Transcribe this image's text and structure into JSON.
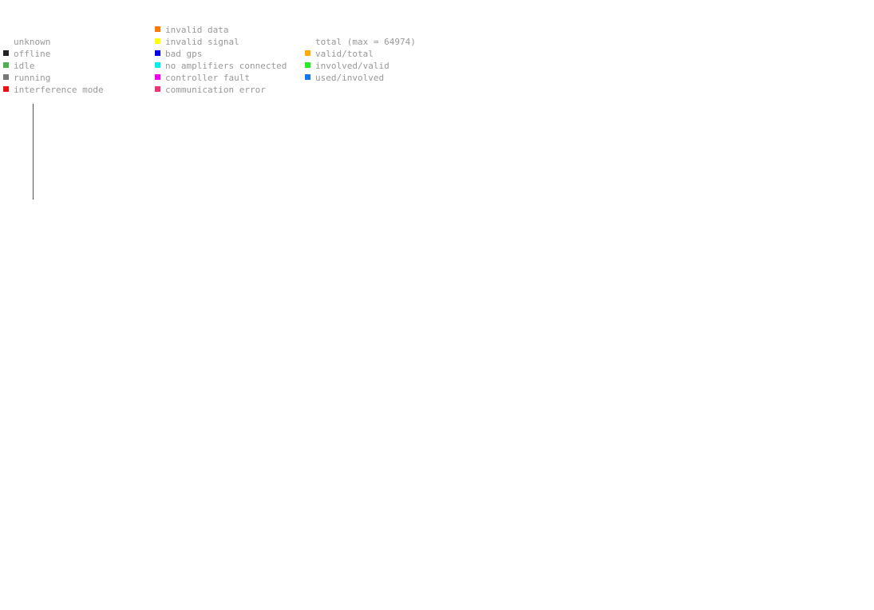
{
  "legend": {
    "status": {
      "items": [
        {
          "label": "unknown",
          "color": ""
        },
        {
          "label": "offline",
          "color": "#222222"
        },
        {
          "label": "idle",
          "color": "#4caf50"
        },
        {
          "label": "running",
          "color": "#777777"
        },
        {
          "label": "interference mode",
          "color": "#ee1111"
        }
      ]
    },
    "faults": {
      "items": [
        {
          "label": "invalid data",
          "color": "#ff7a00"
        },
        {
          "label": "invalid signal",
          "color": "#ffff00"
        },
        {
          "label": "bad gps",
          "color": "#0000ee"
        },
        {
          "label": "no amplifiers connected",
          "color": "#00eeee"
        },
        {
          "label": "controller fault",
          "color": "#ee00ee"
        },
        {
          "label": "communication error",
          "color": "#ee3377"
        }
      ]
    },
    "totals": {
      "items": [
        {
          "label": "total (max = 64974)",
          "color": ""
        },
        {
          "label": "valid/total",
          "color": "#ffaa00"
        },
        {
          "label": "involved/valid",
          "color": "#22ee22"
        },
        {
          "label": "used/involved",
          "color": "#1177ee"
        }
      ]
    }
  }
}
